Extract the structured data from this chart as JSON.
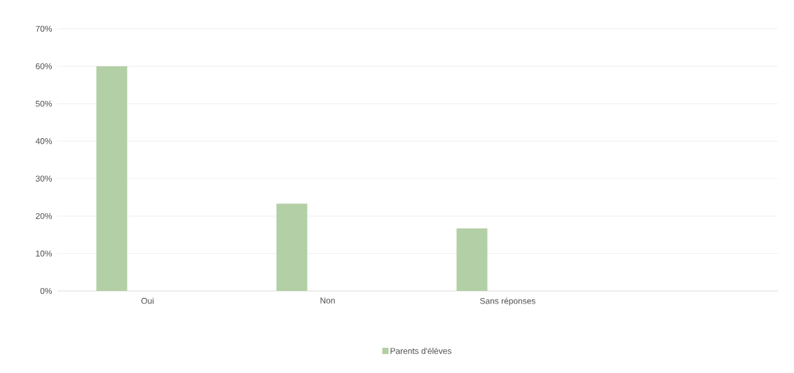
{
  "chart_data": {
    "type": "bar",
    "categories": [
      "Oui",
      "Non",
      "Sans réponses",
      null
    ],
    "series": [
      {
        "name": "Parents d'élèves",
        "color": "#b3cfa5",
        "values": [
          60,
          23.3,
          16.7,
          null
        ]
      }
    ],
    "ylim": [
      0,
      70
    ],
    "yticks": [
      {
        "value": 0,
        "label": "0%"
      },
      {
        "value": 10,
        "label": "10%"
      },
      {
        "value": 20,
        "label": "20%"
      },
      {
        "value": 30,
        "label": "30%"
      },
      {
        "value": 40,
        "label": "40%"
      },
      {
        "value": 50,
        "label": "50%"
      },
      {
        "value": 60,
        "label": "60%"
      },
      {
        "value": 70,
        "label": "70%"
      }
    ],
    "grid": "y",
    "legend": "bottom"
  }
}
